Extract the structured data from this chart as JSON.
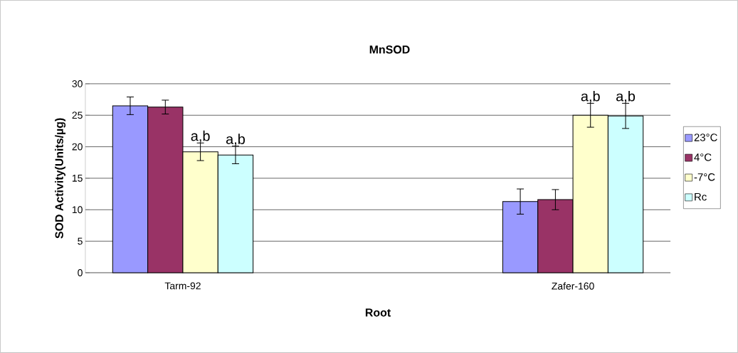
{
  "chart_data": {
    "type": "bar",
    "title": "MnSOD",
    "xlabel": "Root",
    "ylabel": "SOD Activity(Units/µg)",
    "categories": [
      "Tarm-92",
      "Zafer-160"
    ],
    "series": [
      {
        "name": "23°C",
        "color": "#9999ff",
        "values": [
          26.5,
          11.3
        ],
        "errors": [
          1.4,
          2.0
        ]
      },
      {
        "name": "4°C",
        "color": "#993366",
        "values": [
          26.3,
          11.6
        ],
        "errors": [
          1.1,
          1.6
        ]
      },
      {
        "name": "-7°C",
        "color": "#ffffcc",
        "values": [
          19.2,
          25.0
        ],
        "errors": [
          1.4,
          1.9
        ]
      },
      {
        "name": "Rc",
        "color": "#ccffff",
        "values": [
          18.7,
          24.9
        ],
        "errors": [
          1.4,
          2.0
        ]
      }
    ],
    "annotations": [
      "a,b",
      "a,b",
      "a,b",
      "a,b"
    ],
    "ylim": [
      0,
      30
    ],
    "yticks": [
      0,
      5,
      10,
      15,
      20,
      25,
      30
    ],
    "grid": "y",
    "legend": "right"
  }
}
